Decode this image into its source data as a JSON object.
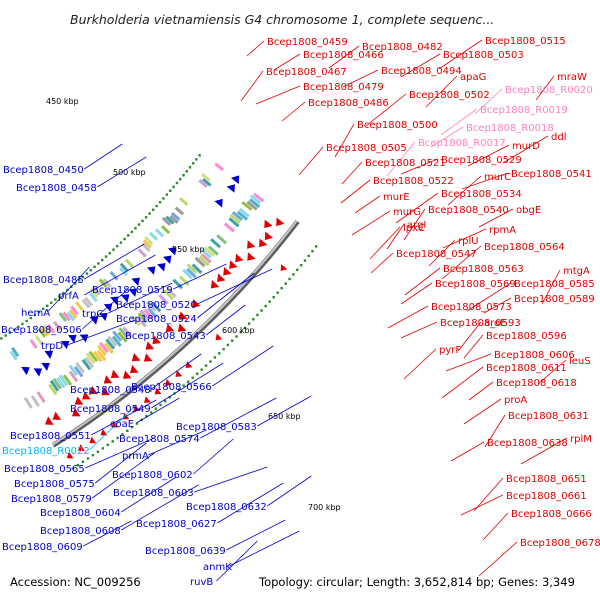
{
  "title": "Burkholderia vietnamiensis G4 chromosome 1, complete sequenc...",
  "accession": "Accession: NC_009256",
  "topology": "Topology: circular; Length: 3,652,814 bp; Genes: 3,349",
  "ticks": [
    "450 kbp",
    "500 kbp",
    "550 kbp",
    "600 kbp",
    "650 kbp",
    "700 kbp"
  ],
  "colors": {
    "forward": "#e00000",
    "reverse": "#0000cc",
    "rna": "#ff7fc0",
    "rna_rev": "#00b8e8",
    "backbone": "#999999",
    "tick": "#2a8a2a"
  },
  "right_labels": [
    {
      "text": "Bcep1808_0459",
      "c": "red"
    },
    {
      "text": "Bcep1808_0482",
      "c": "red"
    },
    {
      "text": "Bcep1808_0515",
      "c": "red"
    },
    {
      "text": "Bcep1808_0466",
      "c": "red"
    },
    {
      "text": "Bcep1808_0503",
      "c": "red"
    },
    {
      "text": "Bcep1808_0467",
      "c": "red"
    },
    {
      "text": "Bcep1808_0494",
      "c": "red"
    },
    {
      "text": "mraW",
      "c": "red"
    },
    {
      "text": "apaG",
      "c": "red"
    },
    {
      "text": "Bcep1808_0479",
      "c": "red"
    },
    {
      "text": "Bcep1808_R0020",
      "c": "pink"
    },
    {
      "text": "Bcep1808_0502",
      "c": "red"
    },
    {
      "text": "Bcep1808_0486",
      "c": "red"
    },
    {
      "text": "Bcep1808_R0019",
      "c": "pink"
    },
    {
      "text": "Bcep1808_0500",
      "c": "red"
    },
    {
      "text": "Bcep1808_R0018",
      "c": "pink"
    },
    {
      "text": "ddl",
      "c": "red"
    },
    {
      "text": "Bcep1808_R0017",
      "c": "pink"
    },
    {
      "text": "murD",
      "c": "red"
    },
    {
      "text": "Bcep1808_0505",
      "c": "red"
    },
    {
      "text": "Bcep1808_0529",
      "c": "red"
    },
    {
      "text": "Bcep1808_0521",
      "c": "red"
    },
    {
      "text": "murC",
      "c": "red"
    },
    {
      "text": "Bcep1808_0541",
      "c": "red"
    },
    {
      "text": "Bcep1808_0522",
      "c": "red"
    },
    {
      "text": "Bcep1808_0534",
      "c": "red"
    },
    {
      "text": "murE",
      "c": "red"
    },
    {
      "text": "murG",
      "c": "red"
    },
    {
      "text": "Bcep1808_0540",
      "c": "red"
    },
    {
      "text": "obgE",
      "c": "red"
    },
    {
      "text": "argI",
      "c": "red"
    },
    {
      "text": "lpxC",
      "c": "red"
    },
    {
      "text": "rpmA",
      "c": "red"
    },
    {
      "text": "rplU",
      "c": "red"
    },
    {
      "text": "Bcep1808_0564",
      "c": "red"
    },
    {
      "text": "Bcep1808_0547",
      "c": "red"
    },
    {
      "text": "Bcep1808_0563",
      "c": "red"
    },
    {
      "text": "mtgA",
      "c": "red"
    },
    {
      "text": "Bcep1808_0569",
      "c": "red"
    },
    {
      "text": "Bcep1808_0585",
      "c": "red"
    },
    {
      "text": "Bcep1808_0589",
      "c": "red"
    },
    {
      "text": "Bcep1808_0573",
      "c": "red"
    },
    {
      "text": "aroE",
      "c": "red"
    },
    {
      "text": "Bcep1808_0593",
      "c": "red"
    },
    {
      "text": "Bcep1808_0596",
      "c": "red"
    },
    {
      "text": "pyrF",
      "c": "red"
    },
    {
      "text": "Bcep1808_0606",
      "c": "red"
    },
    {
      "text": "leuS",
      "c": "red"
    },
    {
      "text": "Bcep1808_0611",
      "c": "red"
    },
    {
      "text": "Bcep1808_0618",
      "c": "red"
    },
    {
      "text": "proA",
      "c": "red"
    },
    {
      "text": "Bcep1808_0631",
      "c": "red"
    },
    {
      "text": "Bcep1808_0638",
      "c": "red"
    },
    {
      "text": "rplM",
      "c": "red"
    },
    {
      "text": "Bcep1808_0651",
      "c": "red"
    },
    {
      "text": "Bcep1808_0661",
      "c": "red"
    },
    {
      "text": "Bcep1808_0666",
      "c": "red"
    },
    {
      "text": "Bcep1808_0678",
      "c": "red"
    }
  ],
  "left_labels": [
    {
      "text": "Bcep1808_0450",
      "c": "blue"
    },
    {
      "text": "Bcep1808_0458",
      "c": "blue"
    },
    {
      "text": "Bcep1808_0485",
      "c": "blue"
    },
    {
      "text": "prfA",
      "c": "blue"
    },
    {
      "text": "hemA",
      "c": "blue"
    },
    {
      "text": "Bcep1808_0519",
      "c": "blue"
    },
    {
      "text": "trpC",
      "c": "blue"
    },
    {
      "text": "Bcep1808_0520",
      "c": "blue"
    },
    {
      "text": "Bcep1808_0506",
      "c": "blue"
    },
    {
      "text": "Bcep1808_0524",
      "c": "blue"
    },
    {
      "text": "trpD",
      "c": "blue"
    },
    {
      "text": "Bcep1808_0543",
      "c": "blue"
    },
    {
      "text": "Bcep1808_0548",
      "c": "blue"
    },
    {
      "text": "Bcep1808_0566",
      "c": "blue"
    },
    {
      "text": "Bcep1808_0549",
      "c": "blue"
    },
    {
      "text": "coaE",
      "c": "blue"
    },
    {
      "text": "Bcep1808_0583",
      "c": "blue"
    },
    {
      "text": "Bcep1808_0551",
      "c": "blue"
    },
    {
      "text": "Bcep1808_0574",
      "c": "blue"
    },
    {
      "text": "Bcep1808_R0022",
      "c": "cyan"
    },
    {
      "text": "prmA",
      "c": "blue"
    },
    {
      "text": "Bcep1808_0565",
      "c": "blue"
    },
    {
      "text": "Bcep1808_0602",
      "c": "blue"
    },
    {
      "text": "Bcep1808_0575",
      "c": "blue"
    },
    {
      "text": "Bcep1808_0579",
      "c": "blue"
    },
    {
      "text": "Bcep1808_0603",
      "c": "blue"
    },
    {
      "text": "Bcep1808_0632",
      "c": "blue"
    },
    {
      "text": "Bcep1808_0604",
      "c": "blue"
    },
    {
      "text": "Bcep1808_0627",
      "c": "blue"
    },
    {
      "text": "Bcep1808_0608",
      "c": "blue"
    },
    {
      "text": "Bcep1808_0609",
      "c": "blue"
    },
    {
      "text": "Bcep1808_0639",
      "c": "blue"
    },
    {
      "text": "anmK",
      "c": "blue"
    },
    {
      "text": "ruvB",
      "c": "blue"
    }
  ]
}
